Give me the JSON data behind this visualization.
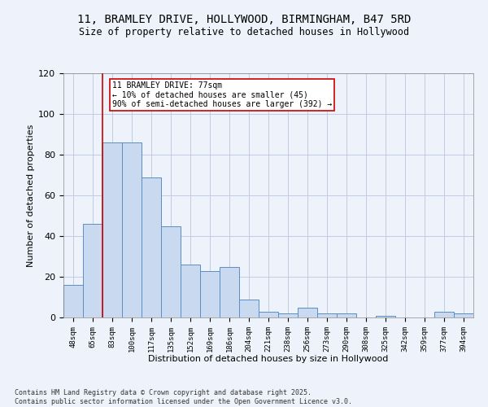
{
  "title_line1": "11, BRAMLEY DRIVE, HOLLYWOOD, BIRMINGHAM, B47 5RD",
  "title_line2": "Size of property relative to detached houses in Hollywood",
  "xlabel": "Distribution of detached houses by size in Hollywood",
  "ylabel": "Number of detached properties",
  "bins": [
    "48sqm",
    "65sqm",
    "83sqm",
    "100sqm",
    "117sqm",
    "135sqm",
    "152sqm",
    "169sqm",
    "186sqm",
    "204sqm",
    "221sqm",
    "238sqm",
    "256sqm",
    "273sqm",
    "290sqm",
    "308sqm",
    "325sqm",
    "342sqm",
    "359sqm",
    "377sqm",
    "394sqm"
  ],
  "values": [
    16,
    46,
    86,
    86,
    69,
    45,
    26,
    23,
    25,
    9,
    3,
    2,
    5,
    2,
    2,
    0,
    1,
    0,
    0,
    3,
    2
  ],
  "bar_color": "#c9d9f0",
  "bar_edge_color": "#5b8ec4",
  "vline_color": "#cc0000",
  "vline_x": 1.5,
  "annotation_text": "11 BRAMLEY DRIVE: 77sqm\n← 10% of detached houses are smaller (45)\n90% of semi-detached houses are larger (392) →",
  "annotation_box_color": "#ffffff",
  "annotation_box_edge_color": "#cc0000",
  "ylim": [
    0,
    120
  ],
  "yticks": [
    0,
    20,
    40,
    60,
    80,
    100,
    120
  ],
  "grid_color": "#b8c8e0",
  "background_color": "#eef2fa",
  "footer_line1": "Contains HM Land Registry data © Crown copyright and database right 2025.",
  "footer_line2": "Contains public sector information licensed under the Open Government Licence v3.0."
}
